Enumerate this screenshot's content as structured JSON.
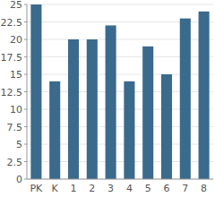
{
  "chart_data": {
    "type": "bar",
    "categories": [
      "PK",
      "K",
      "1",
      "2",
      "3",
      "4",
      "5",
      "6",
      "7",
      "8"
    ],
    "values": [
      25,
      14,
      20,
      20,
      22,
      14,
      19,
      15,
      23,
      24
    ],
    "color": "#3a6a8c",
    "ylim": [
      0,
      25
    ],
    "yticks": [
      0,
      2.5,
      5,
      7.5,
      10,
      12.5,
      15,
      17.5,
      20,
      22.5,
      25
    ],
    "grid": true
  }
}
